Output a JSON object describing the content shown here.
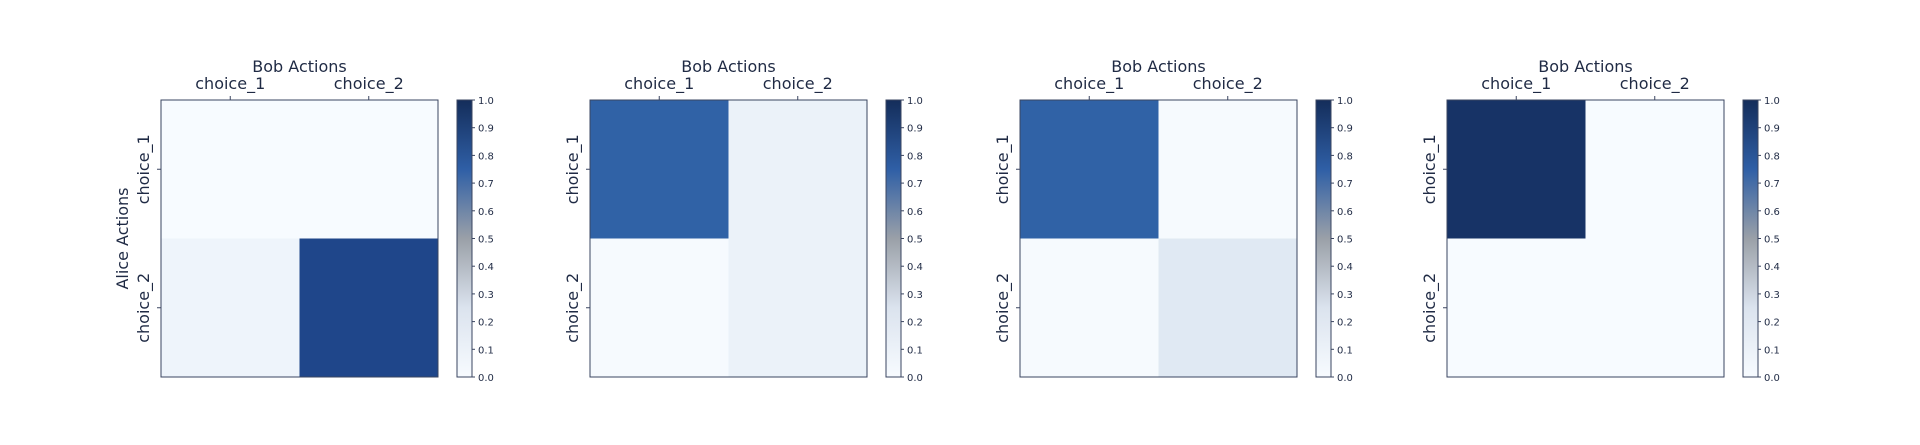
{
  "chart_data": [
    {
      "type": "heatmap",
      "xlabel": "Bob Actions",
      "ylabel": "Alice Actions",
      "x_categories": [
        "choice_1",
        "choice_2"
      ],
      "y_categories": [
        "choice_1",
        "choice_2"
      ],
      "values": [
        [
          0.0,
          0.0
        ],
        [
          0.06,
          0.88
        ]
      ],
      "colorbar": {
        "min": 0.0,
        "max": 1.0,
        "ticks": [
          "0.0",
          "0.1",
          "0.2",
          "0.3",
          "0.4",
          "0.5",
          "0.6",
          "0.7",
          "0.8",
          "0.9",
          "1.0"
        ]
      }
    },
    {
      "type": "heatmap",
      "xlabel": "Bob Actions",
      "ylabel": "",
      "x_categories": [
        "choice_1",
        "choice_2"
      ],
      "y_categories": [
        "choice_1",
        "choice_2"
      ],
      "values": [
        [
          0.76,
          0.08
        ],
        [
          0.01,
          0.08
        ]
      ],
      "colorbar": {
        "min": 0.0,
        "max": 1.0,
        "ticks": [
          "0.0",
          "0.1",
          "0.2",
          "0.3",
          "0.4",
          "0.5",
          "0.6",
          "0.7",
          "0.8",
          "0.9",
          "1.0"
        ]
      }
    },
    {
      "type": "heatmap",
      "xlabel": "Bob Actions",
      "ylabel": "",
      "x_categories": [
        "choice_1",
        "choice_2"
      ],
      "y_categories": [
        "choice_1",
        "choice_2"
      ],
      "values": [
        [
          0.76,
          0.01
        ],
        [
          0.01,
          0.15
        ]
      ],
      "colorbar": {
        "min": 0.0,
        "max": 1.0,
        "ticks": [
          "0.0",
          "0.1",
          "0.2",
          "0.3",
          "0.4",
          "0.5",
          "0.6",
          "0.7",
          "0.8",
          "0.9",
          "1.0"
        ]
      }
    },
    {
      "type": "heatmap",
      "xlabel": "Bob Actions",
      "ylabel": "",
      "x_categories": [
        "choice_1",
        "choice_2"
      ],
      "y_categories": [
        "choice_1",
        "choice_2"
      ],
      "values": [
        [
          0.97,
          0.0
        ],
        [
          0.0,
          0.0
        ]
      ],
      "colorbar": {
        "min": 0.0,
        "max": 1.0,
        "ticks": [
          "0.0",
          "0.1",
          "0.2",
          "0.3",
          "0.4",
          "0.5",
          "0.6",
          "0.7",
          "0.8",
          "0.9",
          "1.0"
        ]
      }
    }
  ]
}
